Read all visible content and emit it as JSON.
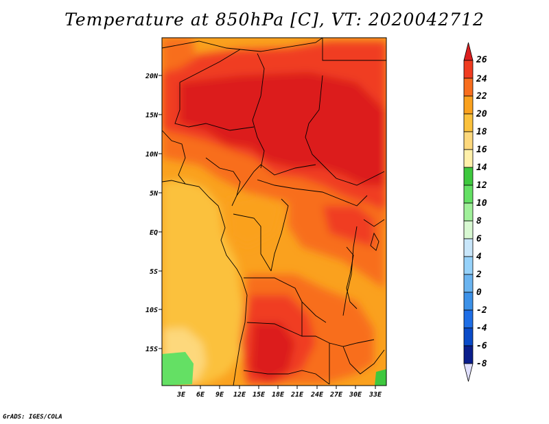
{
  "title": "Temperature at 850hPa [C], VT: 2020042712",
  "credit": "GrADS: IGES/COLA",
  "y_ticks": [
    "20N",
    "15N",
    "10N",
    "5N",
    "EQ",
    "5S",
    "10S",
    "15S"
  ],
  "x_ticks": [
    "3E",
    "6E",
    "9E",
    "12E",
    "15E",
    "18E",
    "21E",
    "24E",
    "27E",
    "30E",
    "33E"
  ],
  "colorbar": {
    "labels": [
      "26",
      "24",
      "22",
      "20",
      "18",
      "16",
      "14",
      "12",
      "10",
      "8",
      "6",
      "4",
      "2",
      "0",
      "-2",
      "-4",
      "-6",
      "-8"
    ],
    "colors": [
      "#dc1e1e",
      "#f03c20",
      "#f86e1e",
      "#faa11e",
      "#fbc13c",
      "#fdd87c",
      "#fff0aa",
      "#3ec83e",
      "#64e064",
      "#a0f09a",
      "#d8f8d2",
      "#c8e6fa",
      "#96d2fa",
      "#6ab4f0",
      "#3c91e8",
      "#1e6ee6",
      "#0a4bc8",
      "#0a1e8c",
      "#000064"
    ],
    "under_color": "#e0e0ff"
  },
  "map": {
    "lat_range": [
      -20,
      24.5
    ],
    "lon_range": [
      0,
      34.5
    ],
    "region": "Central Africa",
    "field": "850hPa temperature"
  }
}
